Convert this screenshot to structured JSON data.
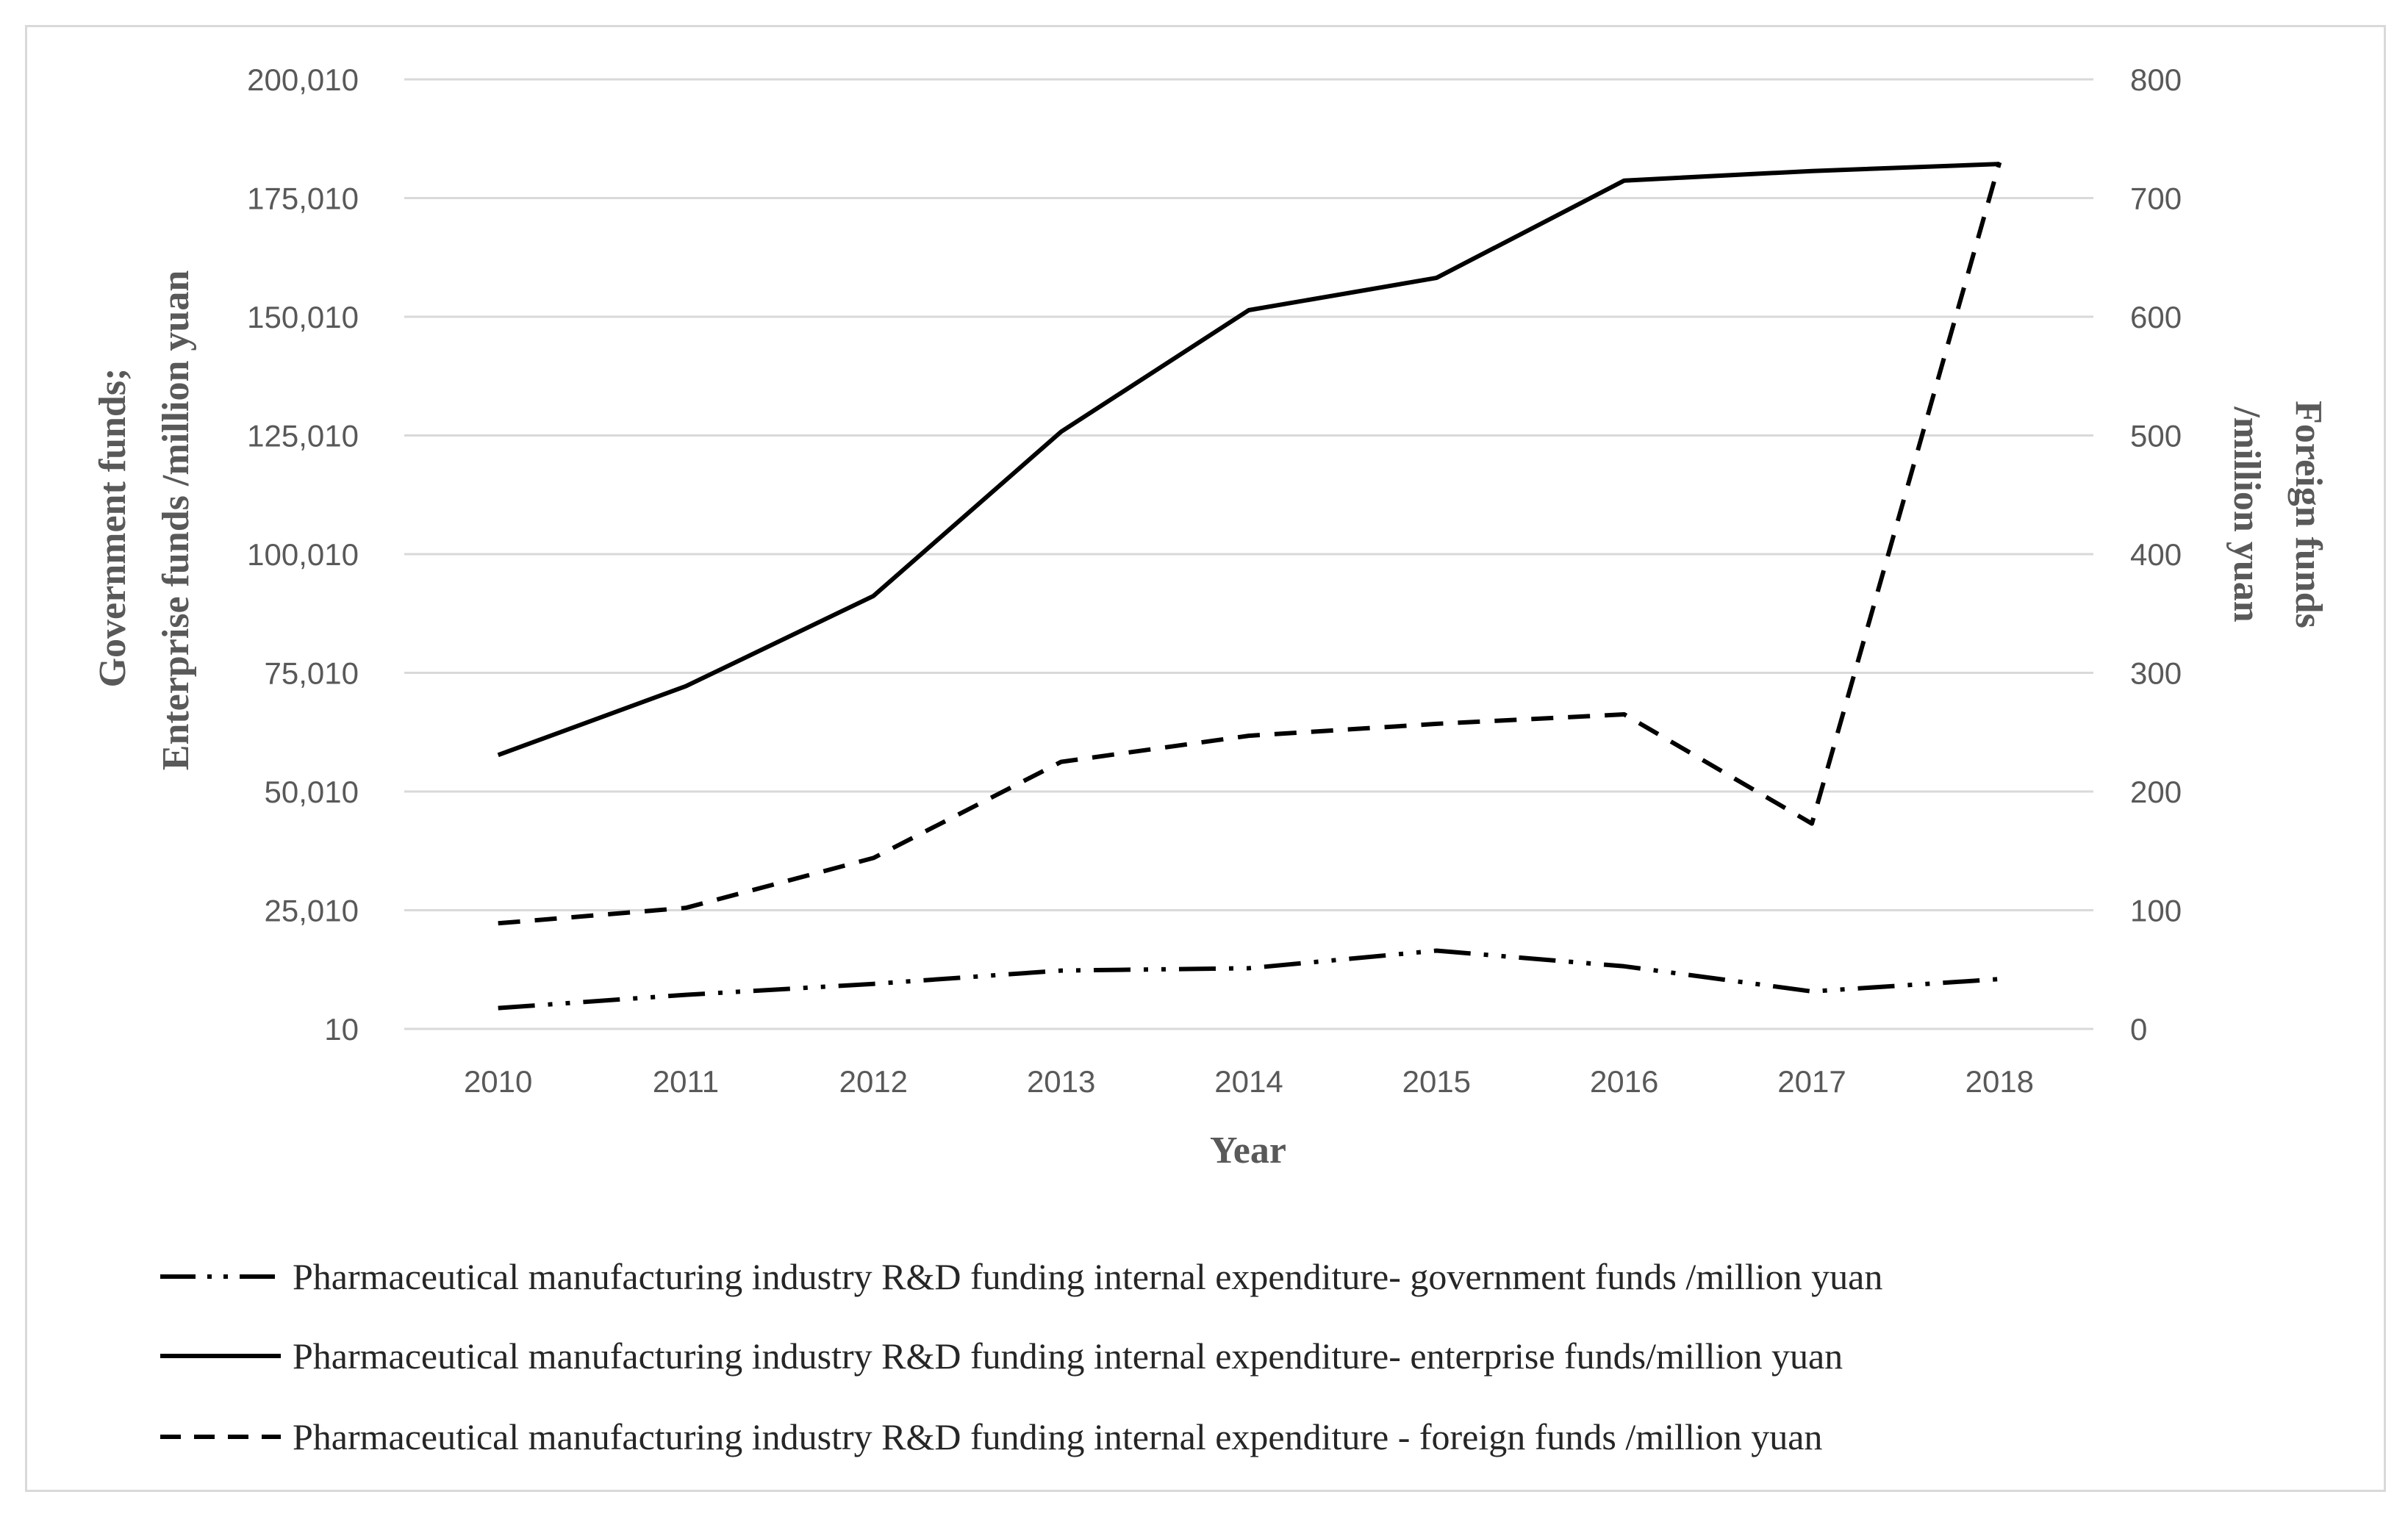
{
  "chart_data": {
    "type": "line",
    "title": "",
    "x": [
      "2010",
      "2011",
      "2012",
      "2013",
      "2014",
      "2015",
      "2016",
      "2017",
      "2018"
    ],
    "xlabel": "Year",
    "ylabel_left_line1": "Government funds;",
    "ylabel_left_line2": "Enterprise funds /million yuan",
    "ylabel_right_line1": "Foreign funds",
    "ylabel_right_line2": "/million yuan",
    "ylim_left": [
      10,
      200010
    ],
    "ylim_right": [
      0,
      800
    ],
    "left_ticks": [
      10,
      25010,
      50010,
      75010,
      100010,
      125010,
      150010,
      175010,
      200010
    ],
    "left_tick_labels": [
      "10",
      "25,010",
      "50,010",
      "75,010",
      "100,010",
      "125,010",
      "150,010",
      "175,010",
      "200,010"
    ],
    "right_ticks": [
      0,
      100,
      200,
      300,
      400,
      500,
      600,
      700,
      800
    ],
    "right_tick_labels": [
      "0",
      "100",
      "200",
      "300",
      "400",
      "500",
      "600",
      "700",
      "800"
    ],
    "grid": true,
    "legend_position": "bottom",
    "series": [
      {
        "name": "Pharmaceutical manufacturing industry R&D funding internal expenditure- government funds /million yuan",
        "axis": "left",
        "style": "dash-dot",
        "values": [
          4400,
          7200,
          9500,
          12300,
          12800,
          16500,
          13200,
          7900,
          10500
        ]
      },
      {
        "name": "Pharmaceutical manufacturing industry R&D funding internal expenditure- enterprise funds/million yuan",
        "axis": "left",
        "style": "solid",
        "values": [
          57700,
          72200,
          91200,
          125800,
          151400,
          158200,
          178700,
          180700,
          182200
        ]
      },
      {
        "name": "Pharmaceutical manufacturing industry R&D funding internal expenditure - foreign funds /million yuan",
        "axis": "right",
        "style": "dashed",
        "values": [
          89,
          102,
          144,
          225,
          247,
          257,
          265,
          173,
          730
        ]
      }
    ]
  }
}
